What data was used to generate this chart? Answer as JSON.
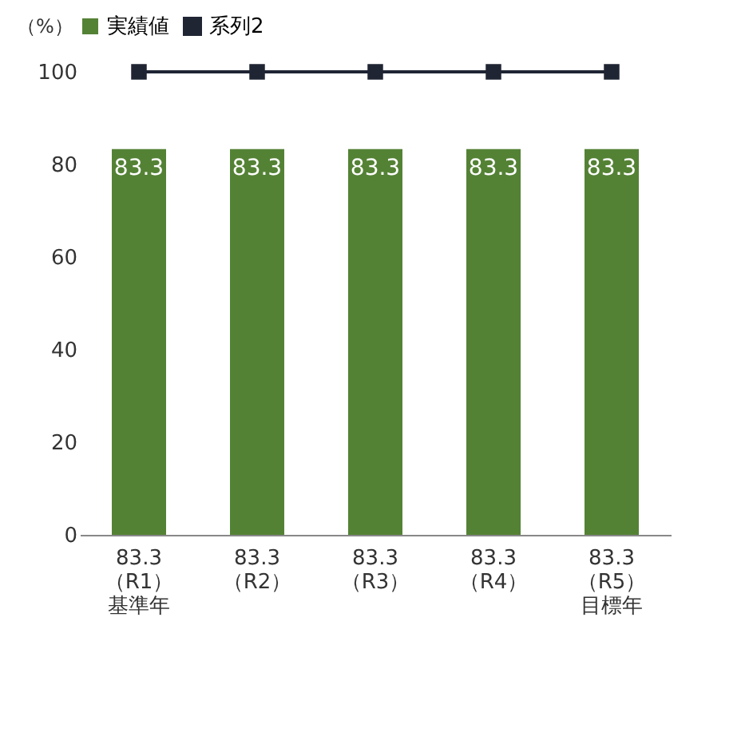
{
  "chart_data": {
    "type": "line",
    "ylabel": "（%）",
    "categories": [
      "83.3\n（R1）基準年",
      "83.3\n（R2）",
      "83.3\n（R3）",
      "83.3\n（R4）",
      "83.3\n（R5）目標年"
    ],
    "series": [
      {
        "name": "実績値",
        "type": "bar",
        "color": "#548235",
        "values": [
          83.3,
          83.3,
          83.3,
          83.3,
          83.3
        ],
        "value_labels": [
          "83.3",
          "83.3",
          "83.3",
          "83.3",
          "83.3"
        ]
      },
      {
        "name": "系列2",
        "color": "#1f2533",
        "marker": "square",
        "values": [
          100,
          100,
          100,
          100,
          100
        ]
      }
    ],
    "ylim": [
      0,
      100
    ],
    "yticks": [
      0,
      20,
      40,
      60,
      80,
      100
    ],
    "grid": false,
    "legend": "top"
  }
}
